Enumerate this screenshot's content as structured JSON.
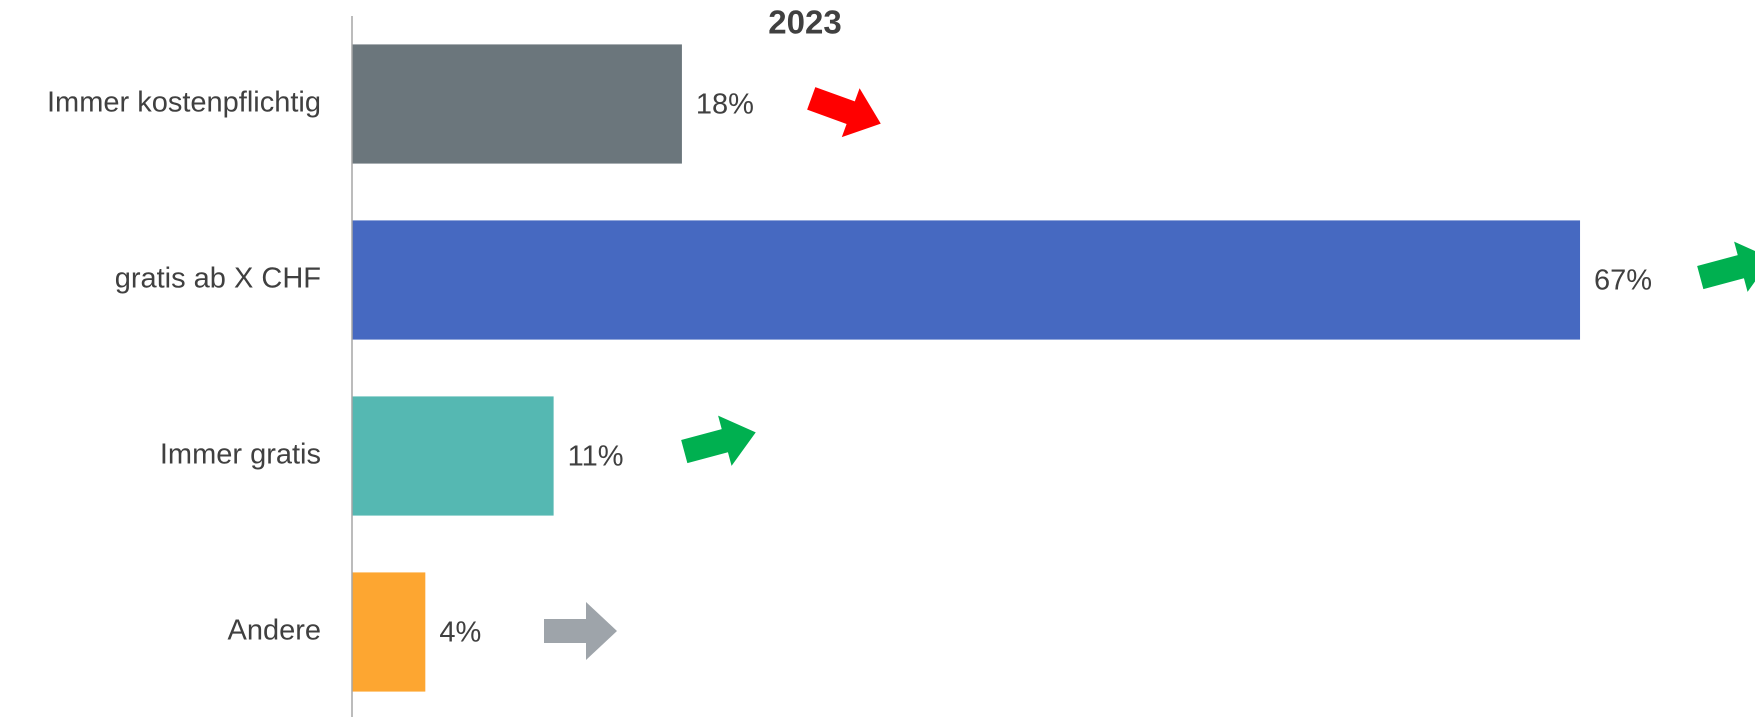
{
  "chart_data": {
    "type": "bar",
    "orientation": "horizontal",
    "title": "2023",
    "categories": [
      "Immer kostenpflichtig",
      "gratis ab X CHF",
      "Immer gratis",
      "Andere"
    ],
    "values": [
      18,
      67,
      11,
      4
    ],
    "value_labels": [
      "18%",
      "67%",
      "11%",
      "4%"
    ],
    "colors": [
      "#6b767c",
      "#4669c1",
      "#55b8b2",
      "#fda631"
    ],
    "xlim": [
      0,
      76
    ],
    "grid": false
  }
}
